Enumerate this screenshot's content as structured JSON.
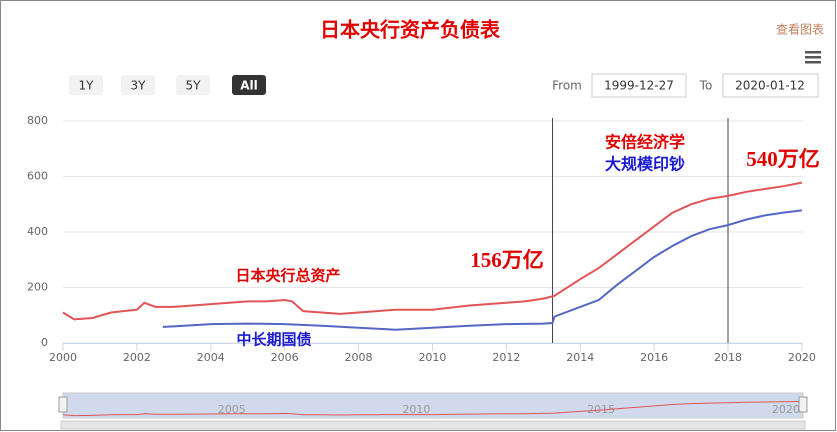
{
  "chart_data": {
    "type": "line",
    "title": "日本央行资产负债表",
    "export_label": "查看图表",
    "range_buttons": [
      "1Y",
      "3Y",
      "5Y",
      "All"
    ],
    "from_label": "From",
    "from_value": "1999-12-27",
    "to_label": "To",
    "to_value": "2020-01-12",
    "xlim": [
      2000,
      2020.03
    ],
    "xticks": [
      2000,
      2002,
      2004,
      2006,
      2008,
      2010,
      2012,
      2014,
      2016,
      2018,
      2020
    ],
    "ylim": [
      0,
      800
    ],
    "yticks": [
      0,
      200,
      400,
      600,
      800
    ],
    "grid": true,
    "plot_lines": [
      2013.25,
      2018
    ],
    "series": [
      {
        "color": "#e05555",
        "x": [
          2000,
          2000.3,
          2000.8,
          2001.3,
          2002,
          2002.2,
          2002.5,
          2003,
          2003.5,
          2004,
          2004.5,
          2005,
          2005.5,
          2006,
          2006.2,
          2006.5,
          2007,
          2007.5,
          2008,
          2008.5,
          2009,
          2010,
          2011,
          2012,
          2012.5,
          2013,
          2013.3,
          2014,
          2014.5,
          2015,
          2015.5,
          2016,
          2016.5,
          2017,
          2017.5,
          2018,
          2018.5,
          2019,
          2019.5,
          2020
        ],
        "values": [
          110,
          85,
          90,
          110,
          120,
          145,
          130,
          130,
          135,
          140,
          145,
          150,
          150,
          155,
          150,
          115,
          110,
          105,
          110,
          115,
          120,
          120,
          135,
          145,
          150,
          160,
          170,
          230,
          270,
          320,
          370,
          420,
          470,
          500,
          520,
          530,
          545,
          555,
          565,
          578
        ]
      },
      {
        "color": "#5566c4",
        "x": [
          2002.7,
          2003,
          2004,
          2005,
          2006,
          2007,
          2008,
          2009,
          2010,
          2011,
          2012,
          2013,
          2013.25,
          2013.3,
          2014,
          2014.5,
          2015,
          2015.5,
          2016,
          2016.5,
          2017,
          2017.5,
          2018,
          2018.5,
          2019,
          2019.5,
          2020
        ],
        "values": [
          58,
          60,
          68,
          70,
          68,
          62,
          55,
          48,
          55,
          62,
          68,
          70,
          72,
          95,
          130,
          155,
          210,
          260,
          310,
          350,
          385,
          410,
          425,
          445,
          460,
          470,
          478
        ]
      }
    ],
    "annotations": [
      "安倍经济学",
      "大规模印钞",
      "540万亿",
      "156万亿",
      "日本央行总资产",
      "中长期国债"
    ],
    "navigator_xticks": [
      2005,
      2010,
      2015,
      2020
    ]
  }
}
